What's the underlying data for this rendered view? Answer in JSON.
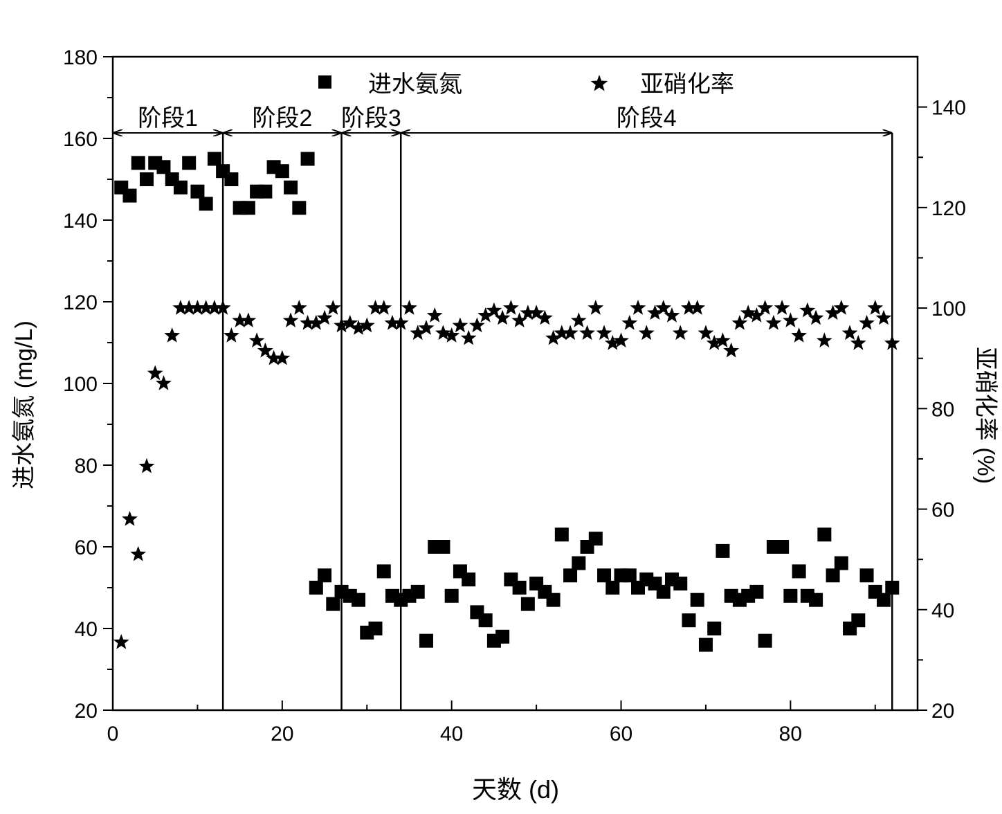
{
  "chart_data": {
    "type": "scatter",
    "xlabel": "天数 (d)",
    "ylabel_left": "进水氨氮 (mg/L)",
    "ylabel_right": "亚硝化率 (%)",
    "xlim": [
      0,
      95
    ],
    "ylim_left": [
      20,
      180
    ],
    "ylim_right": [
      20,
      150
    ],
    "x_ticks": [
      "0",
      "20",
      "40",
      "60",
      "80"
    ],
    "y_ticks_left": [
      "20",
      "40",
      "60",
      "80",
      "100",
      "120",
      "140",
      "160",
      "180"
    ],
    "y_ticks_right": [
      "20",
      "40",
      "60",
      "80",
      "100",
      "120",
      "140"
    ],
    "grid": false,
    "legend_position": "top",
    "stage_boundaries": [
      0,
      13,
      27,
      34,
      92
    ],
    "stages": [
      {
        "label": "阶段1",
        "start": 0,
        "end": 13
      },
      {
        "label": "阶段2",
        "start": 13,
        "end": 27
      },
      {
        "label": "阶段3",
        "start": 27,
        "end": 34
      },
      {
        "label": "阶段4",
        "start": 34,
        "end": 92
      }
    ],
    "series": [
      {
        "name": "进水氨氮",
        "marker": "square",
        "axis": "left",
        "x": [
          1,
          2,
          3,
          4,
          5,
          6,
          7,
          8,
          9,
          10,
          11,
          12,
          13,
          14,
          15,
          16,
          17,
          18,
          19,
          20,
          21,
          22,
          23,
          24,
          25,
          26,
          27,
          28,
          29,
          30,
          31,
          32,
          33,
          34,
          35,
          36,
          37,
          38,
          39,
          40,
          41,
          42,
          43,
          44,
          45,
          46,
          47,
          48,
          49,
          50,
          51,
          52,
          53,
          54,
          55,
          56,
          57,
          58,
          59,
          60,
          61,
          62,
          63,
          64,
          65,
          66,
          67,
          68,
          69,
          70,
          71,
          72,
          73,
          74,
          75,
          76,
          77,
          78,
          79,
          80,
          81,
          82,
          83,
          84,
          85,
          86,
          87,
          88,
          89,
          90,
          91,
          92
        ],
        "y": [
          148,
          146,
          154,
          150,
          154,
          153,
          150,
          148,
          154,
          147,
          144,
          155,
          152,
          150,
          143,
          143,
          147,
          147,
          153,
          152,
          148,
          143,
          155,
          50,
          53,
          46,
          49,
          48,
          47,
          39,
          40,
          54,
          48,
          47,
          48,
          49,
          37,
          60,
          60,
          48,
          54,
          52,
          44,
          42,
          37,
          38,
          52,
          50,
          46,
          51,
          49,
          47,
          63,
          53,
          56,
          60,
          62,
          53,
          50,
          53,
          53,
          50,
          52,
          51,
          49,
          52,
          51,
          42,
          47,
          36,
          40,
          59,
          48,
          47,
          48,
          49,
          37,
          60,
          60,
          48,
          54,
          48,
          47,
          63,
          53,
          56,
          40,
          42,
          53,
          49,
          47,
          50
        ]
      },
      {
        "name": "亚硝化率",
        "marker": "star",
        "axis": "right",
        "x": [
          1,
          2,
          3,
          4,
          5,
          6,
          7,
          8,
          9,
          10,
          11,
          12,
          13,
          14,
          15,
          16,
          17,
          18,
          19,
          20,
          21,
          22,
          23,
          24,
          25,
          26,
          27,
          28,
          29,
          30,
          31,
          32,
          33,
          34,
          35,
          36,
          37,
          38,
          39,
          40,
          41,
          42,
          43,
          44,
          45,
          46,
          47,
          48,
          49,
          50,
          51,
          52,
          53,
          54,
          55,
          56,
          57,
          58,
          59,
          60,
          61,
          62,
          63,
          64,
          65,
          66,
          67,
          68,
          69,
          70,
          71,
          72,
          73,
          74,
          75,
          76,
          77,
          78,
          79,
          80,
          81,
          82,
          83,
          84,
          85,
          86,
          87,
          88,
          89,
          90,
          91,
          92
        ],
        "y": [
          33.5,
          58,
          51,
          68.5,
          87,
          85,
          94.5,
          100,
          100,
          100,
          100,
          100,
          100,
          94.5,
          97.5,
          97.5,
          93.5,
          91.5,
          90,
          90,
          97.5,
          100,
          97,
          97,
          98,
          100,
          96.5,
          97,
          96,
          96.5,
          100,
          100,
          97,
          97,
          100,
          95,
          96,
          98.5,
          95,
          94.5,
          96.5,
          94,
          96.5,
          98.5,
          99.5,
          98,
          100,
          97.5,
          99,
          99,
          98,
          94,
          95,
          95,
          97.5,
          95,
          100,
          95,
          93,
          93.5,
          97,
          100,
          95,
          99,
          100,
          98.5,
          95,
          100,
          100,
          95,
          93,
          93.5,
          91.5,
          97,
          99,
          98.5,
          100,
          97,
          100,
          97.5,
          94.5,
          99.5,
          98,
          93.5,
          99,
          100,
          95,
          93,
          97,
          100,
          98,
          93
        ]
      }
    ]
  }
}
